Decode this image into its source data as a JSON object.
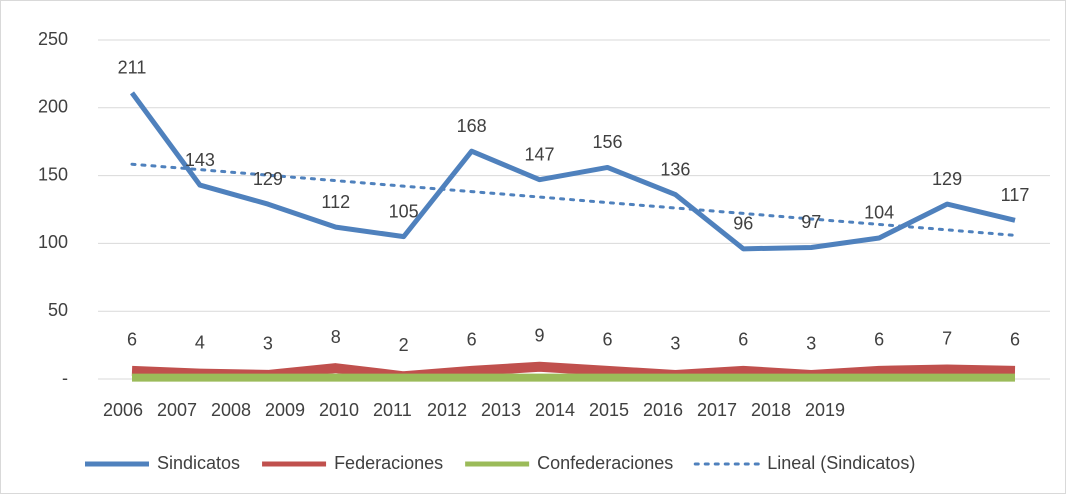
{
  "chart_data": {
    "type": "line",
    "categories": [
      "2006",
      "2007",
      "2008",
      "2009",
      "2010",
      "2011",
      "2012",
      "2013",
      "2014",
      "2015",
      "2016",
      "2017",
      "2018",
      "2019"
    ],
    "series": [
      {
        "name": "Sindicatos",
        "color": "#4f81bd",
        "values": [
          211,
          143,
          129,
          112,
          105,
          168,
          147,
          156,
          136,
          96,
          97,
          104,
          129,
          117
        ],
        "labels": true
      },
      {
        "name": "Federaciones",
        "color": "#c0504d",
        "values": [
          6,
          4,
          3,
          8,
          2,
          6,
          9,
          6,
          3,
          6,
          3,
          6,
          7,
          6
        ],
        "labels": true
      },
      {
        "name": "Confederaciones",
        "color": "#9bbb59",
        "values": [
          1,
          1,
          1,
          1,
          1,
          1,
          1,
          1,
          1,
          1,
          1,
          1,
          1,
          1
        ],
        "labels": false
      },
      {
        "name": "Lineal (Sindicatos)",
        "color": "#4f81bd",
        "dotted": true,
        "values": [
          158.4,
          154.4,
          150.3,
          146.3,
          142.2,
          138.2,
          134.2,
          130.1,
          126.1,
          122.1,
          118.0,
          114.0,
          110.0,
          105.9
        ],
        "labels": false
      }
    ],
    "ylim": [
      0,
      250
    ],
    "yticks": [
      {
        "value": 0,
        "label": "-"
      },
      50,
      100,
      150,
      200,
      250
    ],
    "grid": true,
    "legend": "bottom"
  }
}
